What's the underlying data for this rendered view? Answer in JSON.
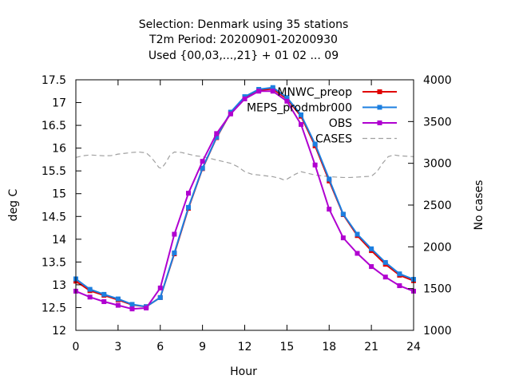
{
  "chart_data": {
    "type": "line",
    "title_lines": [
      "Selection: Denmark using    35 stations",
      "T2m   Period: 20200901-20200930",
      "Used {00,03,...,21} + 01 02 ... 09"
    ],
    "xlabel": "Hour",
    "ylabel": "deg C",
    "y2label": "No cases",
    "xlim": [
      0,
      24
    ],
    "ylim": [
      12,
      17.5
    ],
    "y2lim": [
      1000,
      4000
    ],
    "x_ticks": [
      0,
      3,
      6,
      9,
      12,
      15,
      18,
      21,
      24
    ],
    "x_tick_labels": [
      "0",
      "3",
      "6",
      "9",
      "12",
      "15",
      "18",
      "21",
      "24"
    ],
    "y_ticks": [
      12,
      12.5,
      13,
      13.5,
      14,
      14.5,
      15,
      15.5,
      16,
      16.5,
      17,
      17.5
    ],
    "y_tick_labels": [
      "12",
      "12.5",
      "13",
      "13.5",
      "14",
      "14.5",
      "15",
      "15.5",
      "16",
      "16.5",
      "17",
      "17.5"
    ],
    "y2_ticks": [
      1000,
      1500,
      2000,
      2500,
      3000,
      3500,
      4000
    ],
    "y2_tick_labels": [
      "1000",
      "1500",
      "2000",
      "2500",
      "3000",
      "3500",
      "4000"
    ],
    "grid": false,
    "legend_position": "top-right",
    "x": [
      0,
      1,
      2,
      3,
      4,
      5,
      6,
      7,
      8,
      9,
      10,
      11,
      12,
      13,
      14,
      15,
      16,
      17,
      18,
      19,
      20,
      21,
      22,
      23,
      24
    ],
    "series": [
      {
        "name": "MNWC_preop",
        "color": "#e00000",
        "axis": "y",
        "style": "line-points",
        "values": [
          13.08,
          12.87,
          12.77,
          12.67,
          12.56,
          12.52,
          12.72,
          13.68,
          14.68,
          15.55,
          16.23,
          16.78,
          17.12,
          17.27,
          17.3,
          17.08,
          16.7,
          16.05,
          15.28,
          14.54,
          14.08,
          13.75,
          13.45,
          13.21,
          13.09
        ]
      },
      {
        "name": "MEPS_prodmbr000",
        "color": "#1c7fe0",
        "axis": "y",
        "style": "line-points",
        "values": [
          13.13,
          12.9,
          12.79,
          12.69,
          12.57,
          12.52,
          12.72,
          13.7,
          14.7,
          15.56,
          16.24,
          16.79,
          17.13,
          17.29,
          17.33,
          17.11,
          16.73,
          16.09,
          15.32,
          14.55,
          14.11,
          13.79,
          13.49,
          13.24,
          13.12
        ]
      },
      {
        "name": "OBS",
        "color": "#b000d0",
        "axis": "y",
        "style": "line-points",
        "values": [
          12.86,
          12.73,
          12.63,
          12.55,
          12.47,
          12.49,
          12.93,
          14.11,
          15.01,
          15.71,
          16.32,
          16.75,
          17.08,
          17.25,
          17.25,
          17.03,
          16.52,
          15.63,
          14.66,
          14.03,
          13.69,
          13.4,
          13.17,
          12.98,
          12.86
        ]
      },
      {
        "name": "CASES",
        "color": "#a0a0a0",
        "axis": "y2",
        "style": "dashed",
        "x": [
          0,
          0.5,
          1,
          1.5,
          2,
          2.5,
          3,
          3.5,
          4,
          4.5,
          5,
          5.3,
          5.6,
          5.9,
          6.1,
          6.4,
          6.7,
          7,
          7.5,
          8,
          8.5,
          9,
          9.5,
          10,
          10.5,
          11,
          11.5,
          12,
          12.5,
          13,
          13.5,
          14,
          14.5,
          14.8,
          15,
          15.3,
          15.6,
          16,
          16.5,
          17,
          17.5,
          18,
          18.5,
          19,
          19.5,
          20,
          20.5,
          21,
          21.4,
          21.8,
          22.2,
          22.6,
          23,
          23.5,
          24
        ],
        "values": [
          3070,
          3090,
          3100,
          3095,
          3090,
          3092,
          3110,
          3120,
          3130,
          3135,
          3125,
          3080,
          3020,
          2950,
          2940,
          3010,
          3100,
          3135,
          3130,
          3110,
          3090,
          3080,
          3060,
          3040,
          3020,
          3000,
          2960,
          2900,
          2870,
          2860,
          2850,
          2840,
          2820,
          2800,
          2810,
          2840,
          2870,
          2900,
          2880,
          2860,
          2850,
          2840,
          2835,
          2830,
          2830,
          2835,
          2840,
          2845,
          2900,
          3000,
          3080,
          3100,
          3090,
          3085,
          3080
        ]
      }
    ]
  }
}
